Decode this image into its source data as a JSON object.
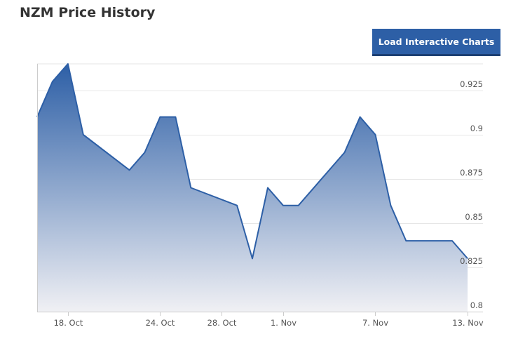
{
  "header": {
    "title": "NZM Price History",
    "load_button_label": "Load Interactive Charts"
  },
  "colors": {
    "line": "#2d5fa6",
    "fill_top": "#2d5fa6",
    "fill_bottom": "#f0f0f4",
    "grid": "#e6e6e6",
    "button": "#2d5fa6"
  },
  "chart_data": {
    "type": "area",
    "title": "NZM Price History",
    "xlabel": "",
    "ylabel": "",
    "ylim": [
      0.8,
      0.94
    ],
    "yticks": [
      0.8,
      0.825,
      0.85,
      0.875,
      0.9,
      0.925
    ],
    "ytick_labels": [
      "0.8",
      "0.825",
      "0.85",
      "0.875",
      "0.9",
      "0.925"
    ],
    "xticks": [
      {
        "date": "2018-10-18",
        "label": "18. Oct"
      },
      {
        "date": "2018-10-24",
        "label": "24. Oct"
      },
      {
        "date": "2018-10-28",
        "label": "28. Oct"
      },
      {
        "date": "2018-11-01",
        "label": "1. Nov"
      },
      {
        "date": "2018-11-07",
        "label": "7. Nov"
      },
      {
        "date": "2018-11-13",
        "label": "13. Nov"
      }
    ],
    "xlim": [
      "2018-10-16",
      "2018-11-14"
    ],
    "grid": true,
    "series": [
      {
        "points": [
          {
            "date": "2018-10-16",
            "value": 0.91
          },
          {
            "date": "2018-10-17",
            "value": 0.93
          },
          {
            "date": "2018-10-18",
            "value": 0.94
          },
          {
            "date": "2018-10-19",
            "value": 0.9
          },
          {
            "date": "2018-10-22",
            "value": 0.88
          },
          {
            "date": "2018-10-23",
            "value": 0.89
          },
          {
            "date": "2018-10-24",
            "value": 0.91
          },
          {
            "date": "2018-10-25",
            "value": 0.91
          },
          {
            "date": "2018-10-26",
            "value": 0.87
          },
          {
            "date": "2018-10-29",
            "value": 0.86
          },
          {
            "date": "2018-10-30",
            "value": 0.83
          },
          {
            "date": "2018-10-31",
            "value": 0.87
          },
          {
            "date": "2018-11-01",
            "value": 0.86
          },
          {
            "date": "2018-11-02",
            "value": 0.86
          },
          {
            "date": "2018-11-05",
            "value": 0.89
          },
          {
            "date": "2018-11-06",
            "value": 0.91
          },
          {
            "date": "2018-11-07",
            "value": 0.9
          },
          {
            "date": "2018-11-08",
            "value": 0.86
          },
          {
            "date": "2018-11-09",
            "value": 0.84
          },
          {
            "date": "2018-11-12",
            "value": 0.84
          },
          {
            "date": "2018-11-13",
            "value": 0.83
          }
        ]
      }
    ]
  }
}
